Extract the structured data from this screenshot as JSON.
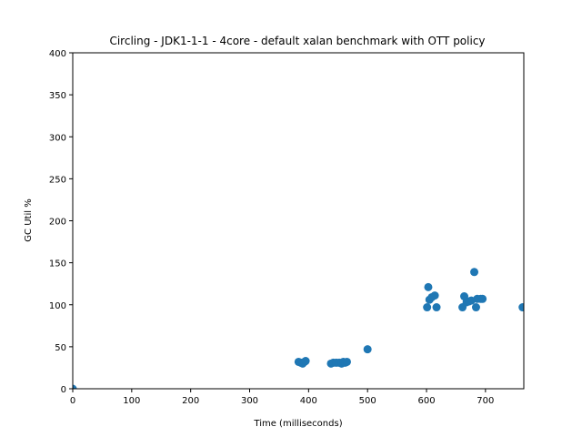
{
  "chart_data": {
    "type": "scatter",
    "title": "Circling - JDK1-1-1 - 4core -  default xalan benchmark with OTT policy",
    "xlabel": "Time (milliseconds)",
    "ylabel": "GC Util %",
    "xlim": [
      0,
      765
    ],
    "ylim": [
      0,
      400
    ],
    "x_ticks": [
      0,
      100,
      200,
      300,
      400,
      500,
      600,
      700
    ],
    "y_ticks": [
      0,
      50,
      100,
      150,
      200,
      250,
      300,
      350,
      400
    ],
    "grid": false,
    "marker_color": "#1f77b4",
    "series": [
      {
        "points": [
          {
            "x": 0,
            "y": 0
          },
          {
            "x": 383,
            "y": 32
          },
          {
            "x": 387,
            "y": 31
          },
          {
            "x": 390,
            "y": 30
          },
          {
            "x": 393,
            "y": 32
          },
          {
            "x": 395,
            "y": 33
          },
          {
            "x": 438,
            "y": 30
          },
          {
            "x": 442,
            "y": 31
          },
          {
            "x": 447,
            "y": 31
          },
          {
            "x": 452,
            "y": 31
          },
          {
            "x": 456,
            "y": 30
          },
          {
            "x": 459,
            "y": 32
          },
          {
            "x": 462,
            "y": 31
          },
          {
            "x": 465,
            "y": 32
          },
          {
            "x": 500,
            "y": 47
          },
          {
            "x": 601,
            "y": 97
          },
          {
            "x": 603,
            "y": 121
          },
          {
            "x": 605,
            "y": 106
          },
          {
            "x": 609,
            "y": 109
          },
          {
            "x": 614,
            "y": 111
          },
          {
            "x": 617,
            "y": 97
          },
          {
            "x": 661,
            "y": 97
          },
          {
            "x": 664,
            "y": 110
          },
          {
            "x": 668,
            "y": 103
          },
          {
            "x": 672,
            "y": 104
          },
          {
            "x": 676,
            "y": 105
          },
          {
            "x": 681,
            "y": 139
          },
          {
            "x": 684,
            "y": 97
          },
          {
            "x": 686,
            "y": 107
          },
          {
            "x": 692,
            "y": 107
          },
          {
            "x": 695,
            "y": 107
          },
          {
            "x": 763,
            "y": 97
          }
        ]
      }
    ]
  }
}
